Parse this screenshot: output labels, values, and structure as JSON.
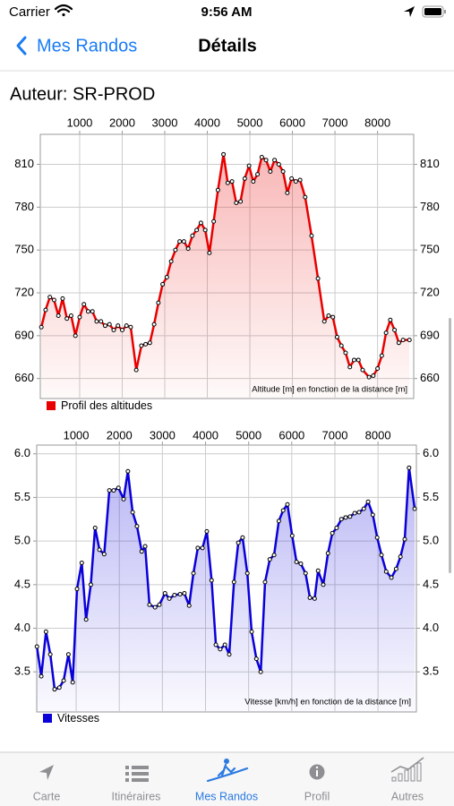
{
  "status_bar": {
    "carrier": "Carrier",
    "time": "9:56 AM"
  },
  "nav": {
    "back": "Mes Randos",
    "title": "Détails"
  },
  "author": "Auteur: SR-PROD",
  "chart_data": [
    {
      "type": "line",
      "annotation": "Altitude [m] en fonction de la distance [m]",
      "x": [
        100,
        200,
        300,
        400,
        500,
        600,
        700,
        800,
        900,
        1000,
        1100,
        1200,
        1300,
        1400,
        1500,
        1600,
        1700,
        1800,
        1900,
        2000,
        2100,
        2200,
        2330,
        2450,
        2550,
        2650,
        2750,
        2850,
        2950,
        3050,
        3150,
        3250,
        3350,
        3450,
        3550,
        3650,
        3750,
        3850,
        3950,
        4050,
        4150,
        4250,
        4380,
        4480,
        4580,
        4680,
        4780,
        4880,
        4980,
        5080,
        5180,
        5280,
        5380,
        5480,
        5580,
        5680,
        5780,
        5880,
        5980,
        6080,
        6180,
        6300,
        6450,
        6600,
        6750,
        6850,
        6950,
        7050,
        7150,
        7250,
        7350,
        7450,
        7550,
        7650,
        7800,
        7900,
        8000,
        8100,
        8200,
        8300,
        8400,
        8500,
        8600,
        8750
      ],
      "series": [
        {
          "name": "Profil des altitudes",
          "color": "#e80000",
          "values": [
            696,
            708,
            717,
            715,
            704,
            716,
            702,
            704,
            690,
            703,
            712,
            707,
            707,
            700,
            700,
            697,
            698,
            694,
            697,
            694,
            697,
            696,
            666,
            683,
            684,
            685,
            698,
            713,
            726,
            731,
            742,
            750,
            756,
            756,
            751,
            760,
            764,
            769,
            764,
            748,
            770,
            792,
            817,
            797,
            798,
            783,
            784,
            800,
            809,
            798,
            803,
            815,
            813,
            805,
            813,
            810,
            805,
            790,
            800,
            798,
            799,
            787,
            760,
            730,
            700,
            704,
            703,
            689,
            683,
            678,
            668,
            673,
            673,
            666,
            661,
            662,
            667,
            676,
            692,
            701,
            694,
            685,
            687,
            687
          ]
        }
      ],
      "xlim": [
        75,
        8850
      ],
      "ylim": [
        646,
        831
      ],
      "xticks": [
        1000,
        2000,
        3000,
        4000,
        5000,
        6000,
        7000,
        8000
      ],
      "yticks": [
        660,
        690,
        720,
        750,
        780,
        810
      ],
      "grid": true
    },
    {
      "type": "line",
      "annotation": "Vitesse [km/h] en fonction de la distance [m]",
      "x": [
        90,
        190,
        300,
        400,
        500,
        610,
        710,
        820,
        920,
        1020,
        1130,
        1230,
        1340,
        1440,
        1540,
        1650,
        1770,
        1870,
        1980,
        2100,
        2200,
        2310,
        2410,
        2520,
        2600,
        2700,
        2830,
        2930,
        3060,
        3160,
        3280,
        3410,
        3510,
        3620,
        3720,
        3820,
        3930,
        4030,
        4140,
        4240,
        4340,
        4450,
        4550,
        4660,
        4760,
        4860,
        4970,
        5070,
        5180,
        5280,
        5380,
        5490,
        5590,
        5700,
        5800,
        5900,
        6010,
        6110,
        6210,
        6320,
        6420,
        6530,
        6610,
        6730,
        6840,
        6940,
        7040,
        7150,
        7250,
        7350,
        7460,
        7560,
        7670,
        7770,
        7880,
        7980,
        8080,
        8190,
        8310,
        8420,
        8520,
        8620,
        8720,
        8850
      ],
      "series": [
        {
          "name": "Vitesses",
          "color": "#0a00d8",
          "values": [
            3.79,
            3.45,
            3.96,
            3.7,
            3.3,
            3.32,
            3.4,
            3.7,
            3.38,
            4.45,
            4.75,
            4.1,
            4.5,
            5.15,
            4.9,
            4.85,
            5.58,
            5.58,
            5.61,
            5.48,
            5.8,
            5.33,
            5.17,
            4.88,
            4.94,
            4.27,
            4.24,
            4.27,
            4.4,
            4.34,
            4.38,
            4.39,
            4.4,
            4.26,
            4.63,
            4.92,
            4.92,
            5.11,
            4.55,
            3.81,
            3.76,
            3.81,
            3.7,
            4.53,
            4.98,
            5.04,
            4.63,
            3.96,
            3.65,
            3.5,
            4.53,
            4.79,
            4.84,
            5.23,
            5.35,
            5.42,
            5.06,
            4.76,
            4.74,
            4.63,
            4.35,
            4.34,
            4.66,
            4.5,
            4.86,
            5.09,
            5.15,
            5.25,
            5.27,
            5.28,
            5.32,
            5.33,
            5.37,
            5.45,
            5.3,
            5.04,
            4.84,
            4.65,
            4.58,
            4.68,
            4.82,
            5.02,
            5.84,
            5.37
          ]
        }
      ],
      "xlim": [
        85,
        8890
      ],
      "ylim": [
        3.04,
        6.1
      ],
      "xticks": [
        1000,
        2000,
        3000,
        4000,
        5000,
        6000,
        7000,
        8000
      ],
      "yticks": [
        3.5,
        {
          "value": 4,
          "label": "4.0"
        },
        4.5,
        {
          "value": 5,
          "label": "5.0"
        },
        5.5,
        {
          "value": 6,
          "label": "6.0"
        }
      ],
      "grid": true
    }
  ],
  "tab_bar": {
    "items": [
      "Carte",
      "Itinéraires",
      "Mes Randos",
      "Profil",
      "Autres"
    ],
    "active": 2
  }
}
